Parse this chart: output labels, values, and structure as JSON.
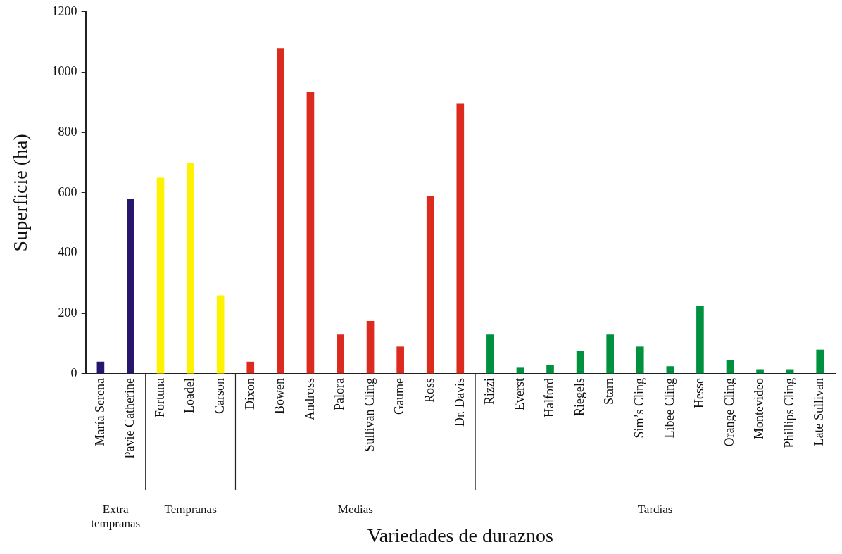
{
  "chart_data": {
    "type": "bar",
    "xlabel": "Variedades de duraznos",
    "ylabel": "Superficie (ha)",
    "categories": [
      "María Serena",
      "Pavie Catherine",
      "Fortuna",
      "Loadel",
      "Carson",
      "Dixon",
      "Bowen",
      "Andross",
      "Palora",
      "Sullivan Cling",
      "Gaume",
      "Ross",
      "Dr. Davis",
      "Rizzi",
      "Everst",
      "Halford",
      "Riegels",
      "Starn",
      "Sim’s Cling",
      "Libee Cling",
      "Hesse",
      "Orange Cling",
      "Montevideo",
      "Phillips Cling",
      "Late Sullivan"
    ],
    "values": [
      40,
      580,
      650,
      700,
      260,
      40,
      1080,
      935,
      130,
      175,
      90,
      590,
      895,
      130,
      20,
      30,
      75,
      130,
      90,
      25,
      225,
      45,
      15,
      15,
      80
    ],
    "colors": [
      "#27166b",
      "#27166b",
      "#fff200",
      "#fff200",
      "#fff200",
      "#dc2a1e",
      "#dc2a1e",
      "#dc2a1e",
      "#dc2a1e",
      "#dc2a1e",
      "#dc2a1e",
      "#dc2a1e",
      "#dc2a1e",
      "#00913f",
      "#00913f",
      "#00913f",
      "#00913f",
      "#00913f",
      "#00913f",
      "#00913f",
      "#00913f",
      "#00913f",
      "#00913f",
      "#00913f",
      "#00913f"
    ],
    "annotations": [
      "Extra tempranas",
      "Tempranas",
      "Medias",
      "Tardías"
    ],
    "ylim": [
      0,
      1200
    ],
    "yticks": [
      0,
      200,
      400,
      600,
      800,
      1000,
      1200
    ],
    "grid": false,
    "legend": false
  }
}
